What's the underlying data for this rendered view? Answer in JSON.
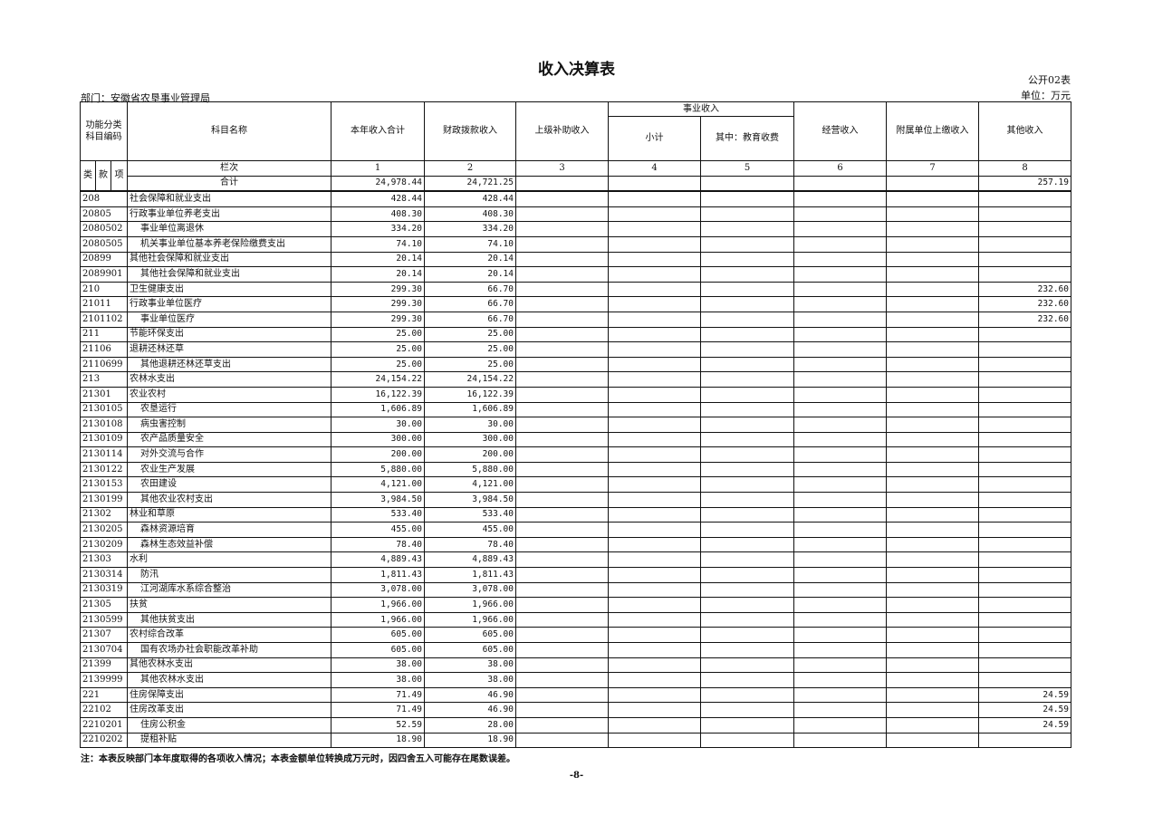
{
  "title": "收入决算表",
  "form_no": "公开02表",
  "unit": "单位：万元",
  "department": "部门：安徽省农垦事业管理局",
  "headers": {
    "code_group": "功能分类\n科目编码",
    "name": "科目名称",
    "c1": "本年收入合计",
    "c2": "财政拨款收入",
    "c3": "上级补助收入",
    "business_group": "事业收入",
    "c4": "小计",
    "c5": "其中：教育收费",
    "c6": "经营收入",
    "c7": "附属单位上缴收入",
    "c8": "其他收入",
    "lei": "类",
    "kuan": "款",
    "xiang": "项",
    "column_index_label": "栏次",
    "column_index": [
      "1",
      "2",
      "3",
      "4",
      "5",
      "6",
      "7",
      "8"
    ],
    "total_label": "合计"
  },
  "total": [
    "24,978.44",
    "24,721.25",
    "",
    "",
    "",
    "",
    "",
    "257.19"
  ],
  "rows": [
    {
      "code": "208",
      "name": "社会保障和就业支出",
      "sub": false,
      "v": [
        "428.44",
        "428.44",
        "",
        "",
        "",
        "",
        "",
        ""
      ]
    },
    {
      "code": "20805",
      "name": "行政事业单位养老支出",
      "sub": false,
      "v": [
        "408.30",
        "408.30",
        "",
        "",
        "",
        "",
        "",
        ""
      ]
    },
    {
      "code": "2080502",
      "name": "事业单位离退休",
      "sub": true,
      "v": [
        "334.20",
        "334.20",
        "",
        "",
        "",
        "",
        "",
        ""
      ]
    },
    {
      "code": "2080505",
      "name": "机关事业单位基本养老保险缴费支出",
      "sub": true,
      "v": [
        "74.10",
        "74.10",
        "",
        "",
        "",
        "",
        "",
        ""
      ]
    },
    {
      "code": "20899",
      "name": "其他社会保障和就业支出",
      "sub": false,
      "v": [
        "20.14",
        "20.14",
        "",
        "",
        "",
        "",
        "",
        ""
      ]
    },
    {
      "code": "2089901",
      "name": "其他社会保障和就业支出",
      "sub": true,
      "v": [
        "20.14",
        "20.14",
        "",
        "",
        "",
        "",
        "",
        ""
      ]
    },
    {
      "code": "210",
      "name": "卫生健康支出",
      "sub": false,
      "v": [
        "299.30",
        "66.70",
        "",
        "",
        "",
        "",
        "",
        "232.60"
      ]
    },
    {
      "code": "21011",
      "name": "行政事业单位医疗",
      "sub": false,
      "v": [
        "299.30",
        "66.70",
        "",
        "",
        "",
        "",
        "",
        "232.60"
      ]
    },
    {
      "code": "2101102",
      "name": "事业单位医疗",
      "sub": true,
      "v": [
        "299.30",
        "66.70",
        "",
        "",
        "",
        "",
        "",
        "232.60"
      ]
    },
    {
      "code": "211",
      "name": "节能环保支出",
      "sub": false,
      "v": [
        "25.00",
        "25.00",
        "",
        "",
        "",
        "",
        "",
        ""
      ]
    },
    {
      "code": "21106",
      "name": "退耕还林还草",
      "sub": false,
      "v": [
        "25.00",
        "25.00",
        "",
        "",
        "",
        "",
        "",
        ""
      ]
    },
    {
      "code": "2110699",
      "name": "其他退耕还林还草支出",
      "sub": true,
      "v": [
        "25.00",
        "25.00",
        "",
        "",
        "",
        "",
        "",
        ""
      ]
    },
    {
      "code": "213",
      "name": "农林水支出",
      "sub": false,
      "v": [
        "24,154.22",
        "24,154.22",
        "",
        "",
        "",
        "",
        "",
        ""
      ]
    },
    {
      "code": "21301",
      "name": "农业农村",
      "sub": false,
      "v": [
        "16,122.39",
        "16,122.39",
        "",
        "",
        "",
        "",
        "",
        ""
      ]
    },
    {
      "code": "2130105",
      "name": "农垦运行",
      "sub": true,
      "v": [
        "1,606.89",
        "1,606.89",
        "",
        "",
        "",
        "",
        "",
        ""
      ]
    },
    {
      "code": "2130108",
      "name": "病虫害控制",
      "sub": true,
      "v": [
        "30.00",
        "30.00",
        "",
        "",
        "",
        "",
        "",
        ""
      ]
    },
    {
      "code": "2130109",
      "name": "农产品质量安全",
      "sub": true,
      "v": [
        "300.00",
        "300.00",
        "",
        "",
        "",
        "",
        "",
        ""
      ]
    },
    {
      "code": "2130114",
      "name": "对外交流与合作",
      "sub": true,
      "v": [
        "200.00",
        "200.00",
        "",
        "",
        "",
        "",
        "",
        ""
      ]
    },
    {
      "code": "2130122",
      "name": "农业生产发展",
      "sub": true,
      "v": [
        "5,880.00",
        "5,880.00",
        "",
        "",
        "",
        "",
        "",
        ""
      ]
    },
    {
      "code": "2130153",
      "name": "农田建设",
      "sub": true,
      "v": [
        "4,121.00",
        "4,121.00",
        "",
        "",
        "",
        "",
        "",
        ""
      ]
    },
    {
      "code": "2130199",
      "name": "其他农业农村支出",
      "sub": true,
      "v": [
        "3,984.50",
        "3,984.50",
        "",
        "",
        "",
        "",
        "",
        ""
      ]
    },
    {
      "code": "21302",
      "name": "林业和草原",
      "sub": false,
      "v": [
        "533.40",
        "533.40",
        "",
        "",
        "",
        "",
        "",
        ""
      ]
    },
    {
      "code": "2130205",
      "name": "森林资源培育",
      "sub": true,
      "v": [
        "455.00",
        "455.00",
        "",
        "",
        "",
        "",
        "",
        ""
      ]
    },
    {
      "code": "2130209",
      "name": "森林生态效益补偿",
      "sub": true,
      "v": [
        "78.40",
        "78.40",
        "",
        "",
        "",
        "",
        "",
        ""
      ]
    },
    {
      "code": "21303",
      "name": "水利",
      "sub": false,
      "v": [
        "4,889.43",
        "4,889.43",
        "",
        "",
        "",
        "",
        "",
        ""
      ]
    },
    {
      "code": "2130314",
      "name": "防汛",
      "sub": true,
      "v": [
        "1,811.43",
        "1,811.43",
        "",
        "",
        "",
        "",
        "",
        ""
      ]
    },
    {
      "code": "2130319",
      "name": "江河湖库水系综合整治",
      "sub": true,
      "v": [
        "3,078.00",
        "3,078.00",
        "",
        "",
        "",
        "",
        "",
        ""
      ]
    },
    {
      "code": "21305",
      "name": "扶贫",
      "sub": false,
      "v": [
        "1,966.00",
        "1,966.00",
        "",
        "",
        "",
        "",
        "",
        ""
      ]
    },
    {
      "code": "2130599",
      "name": "其他扶贫支出",
      "sub": true,
      "v": [
        "1,966.00",
        "1,966.00",
        "",
        "",
        "",
        "",
        "",
        ""
      ]
    },
    {
      "code": "21307",
      "name": "农村综合改革",
      "sub": false,
      "v": [
        "605.00",
        "605.00",
        "",
        "",
        "",
        "",
        "",
        ""
      ]
    },
    {
      "code": "2130704",
      "name": "国有农场办社会职能改革补助",
      "sub": true,
      "v": [
        "605.00",
        "605.00",
        "",
        "",
        "",
        "",
        "",
        ""
      ]
    },
    {
      "code": "21399",
      "name": "其他农林水支出",
      "sub": false,
      "v": [
        "38.00",
        "38.00",
        "",
        "",
        "",
        "",
        "",
        ""
      ]
    },
    {
      "code": "2139999",
      "name": "其他农林水支出",
      "sub": true,
      "v": [
        "38.00",
        "38.00",
        "",
        "",
        "",
        "",
        "",
        ""
      ]
    },
    {
      "code": "221",
      "name": "住房保障支出",
      "sub": false,
      "v": [
        "71.49",
        "46.90",
        "",
        "",
        "",
        "",
        "",
        "24.59"
      ]
    },
    {
      "code": "22102",
      "name": "住房改革支出",
      "sub": false,
      "v": [
        "71.49",
        "46.90",
        "",
        "",
        "",
        "",
        "",
        "24.59"
      ]
    },
    {
      "code": "2210201",
      "name": "住房公积金",
      "sub": true,
      "v": [
        "52.59",
        "28.00",
        "",
        "",
        "",
        "",
        "",
        "24.59"
      ]
    },
    {
      "code": "2210202",
      "name": "提租补贴",
      "sub": true,
      "v": [
        "18.90",
        "18.90",
        "",
        "",
        "",
        "",
        "",
        ""
      ]
    }
  ],
  "note": "注：本表反映部门本年度取得的各项收入情况；本表金额单位转换成万元时，因四舍五入可能存在尾数误差。",
  "page_number": "-8-"
}
